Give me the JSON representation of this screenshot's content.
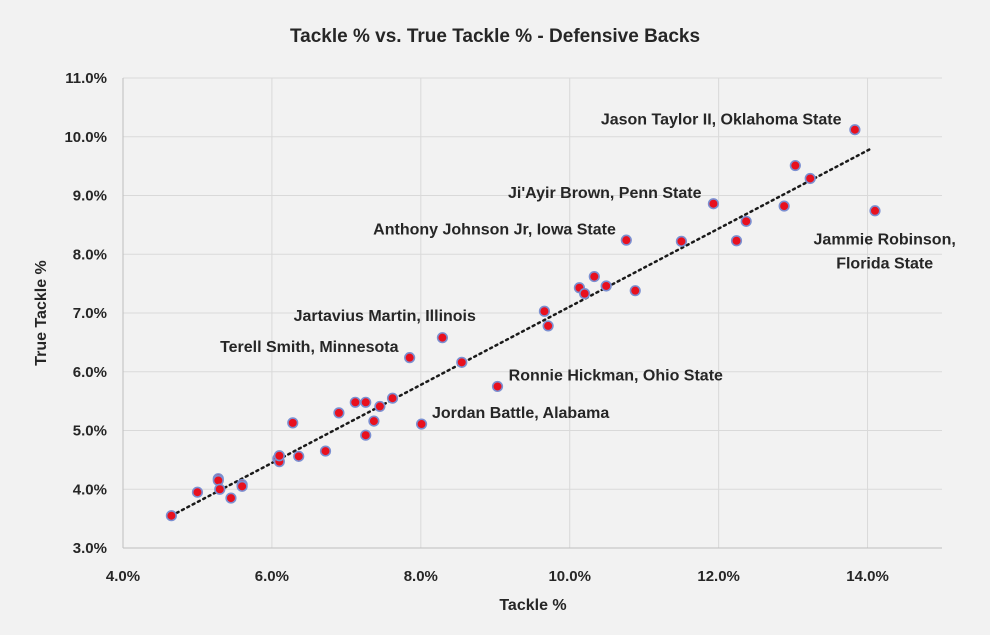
{
  "chart_data": {
    "type": "scatter",
    "title": "Tackle % vs. True Tackle % - Defensive Backs",
    "xlabel": "Tackle %",
    "ylabel": "True Tackle %",
    "xlim": [
      0.04,
      0.15
    ],
    "ylim": [
      0.03,
      0.11
    ],
    "x_ticks": [
      0.04,
      0.06,
      0.08,
      0.1,
      0.12,
      0.14
    ],
    "x_tick_labels": [
      "4.0%",
      "6.0%",
      "8.0%",
      "10.0%",
      "12.0%",
      "14.0%"
    ],
    "y_ticks": [
      0.03,
      0.04,
      0.05,
      0.06,
      0.07,
      0.08,
      0.09,
      0.1,
      0.11
    ],
    "y_tick_labels": [
      "3.0%",
      "4.0%",
      "5.0%",
      "6.0%",
      "7.0%",
      "8.0%",
      "9.0%",
      "10.0%",
      "11.0%"
    ],
    "grid": "vertical and horizontal",
    "trendline": {
      "style": "dotted",
      "from": [
        0.0465,
        0.0355
      ],
      "to": [
        0.1405,
        0.098
      ]
    },
    "marker_color": "#e8101e",
    "marker_edge_color": "#7b8fd1",
    "points": [
      {
        "x": 0.0465,
        "y": 0.0355
      },
      {
        "x": 0.05,
        "y": 0.0395
      },
      {
        "x": 0.0528,
        "y": 0.0418
      },
      {
        "x": 0.0528,
        "y": 0.0415
      },
      {
        "x": 0.053,
        "y": 0.04
      },
      {
        "x": 0.0545,
        "y": 0.0385
      },
      {
        "x": 0.056,
        "y": 0.0408
      },
      {
        "x": 0.056,
        "y": 0.0405
      },
      {
        "x": 0.0608,
        "y": 0.0452
      },
      {
        "x": 0.061,
        "y": 0.0447
      },
      {
        "x": 0.061,
        "y": 0.0457
      },
      {
        "x": 0.0628,
        "y": 0.0513
      },
      {
        "x": 0.0636,
        "y": 0.0456
      },
      {
        "x": 0.0672,
        "y": 0.0465
      },
      {
        "x": 0.069,
        "y": 0.053
      },
      {
        "x": 0.0712,
        "y": 0.0548
      },
      {
        "x": 0.0726,
        "y": 0.0548
      },
      {
        "x": 0.0726,
        "y": 0.0492
      },
      {
        "x": 0.0737,
        "y": 0.0516
      },
      {
        "x": 0.0745,
        "y": 0.0541
      },
      {
        "x": 0.0762,
        "y": 0.0555
      },
      {
        "x": 0.0785,
        "y": 0.0624
      },
      {
        "x": 0.0801,
        "y": 0.0511
      },
      {
        "x": 0.0829,
        "y": 0.0658
      },
      {
        "x": 0.0855,
        "y": 0.0616
      },
      {
        "x": 0.0903,
        "y": 0.0575
      },
      {
        "x": 0.0966,
        "y": 0.0703
      },
      {
        "x": 0.0971,
        "y": 0.0678
      },
      {
        "x": 0.1013,
        "y": 0.0743
      },
      {
        "x": 0.102,
        "y": 0.0733
      },
      {
        "x": 0.1033,
        "y": 0.0762
      },
      {
        "x": 0.1049,
        "y": 0.0746
      },
      {
        "x": 0.1076,
        "y": 0.0824
      },
      {
        "x": 0.1088,
        "y": 0.0738
      },
      {
        "x": 0.115,
        "y": 0.0822
      },
      {
        "x": 0.1193,
        "y": 0.0886
      },
      {
        "x": 0.1224,
        "y": 0.0823
      },
      {
        "x": 0.1237,
        "y": 0.0856
      },
      {
        "x": 0.1288,
        "y": 0.0882
      },
      {
        "x": 0.1303,
        "y": 0.0951
      },
      {
        "x": 0.1323,
        "y": 0.0929
      },
      {
        "x": 0.1383,
        "y": 0.1012
      },
      {
        "x": 0.141,
        "y": 0.0874
      }
    ],
    "annotations": [
      {
        "lines": [
          "Jason Taylor II, Oklahoma State"
        ],
        "anchor": "end",
        "x": 0.1365,
        "y": 0.1021
      },
      {
        "lines": [
          "Ji'Ayir Brown, Penn State"
        ],
        "anchor": "end",
        "x": 0.1177,
        "y": 0.0896
      },
      {
        "lines": [
          "Anthony Johnson Jr, Iowa State"
        ],
        "anchor": "end",
        "x": 0.1062,
        "y": 0.0834
      },
      {
        "lines": [
          "Jammie Robinson,",
          "Florida State"
        ],
        "anchor": "middle",
        "x": 0.1423,
        "y": 0.0817
      },
      {
        "lines": [
          "Jartavius Martin, Illinois"
        ],
        "anchor": "end",
        "x": 0.0874,
        "y": 0.0686
      },
      {
        "lines": [
          "Terell Smith, Minnesota"
        ],
        "anchor": "end",
        "x": 0.077,
        "y": 0.0634
      },
      {
        "lines": [
          "Ronnie Hickman, Ohio State"
        ],
        "anchor": "start",
        "x": 0.0918,
        "y": 0.0585
      },
      {
        "lines": [
          "Jordan Battle, Alabama"
        ],
        "anchor": "start",
        "x": 0.0815,
        "y": 0.0521
      }
    ]
  }
}
